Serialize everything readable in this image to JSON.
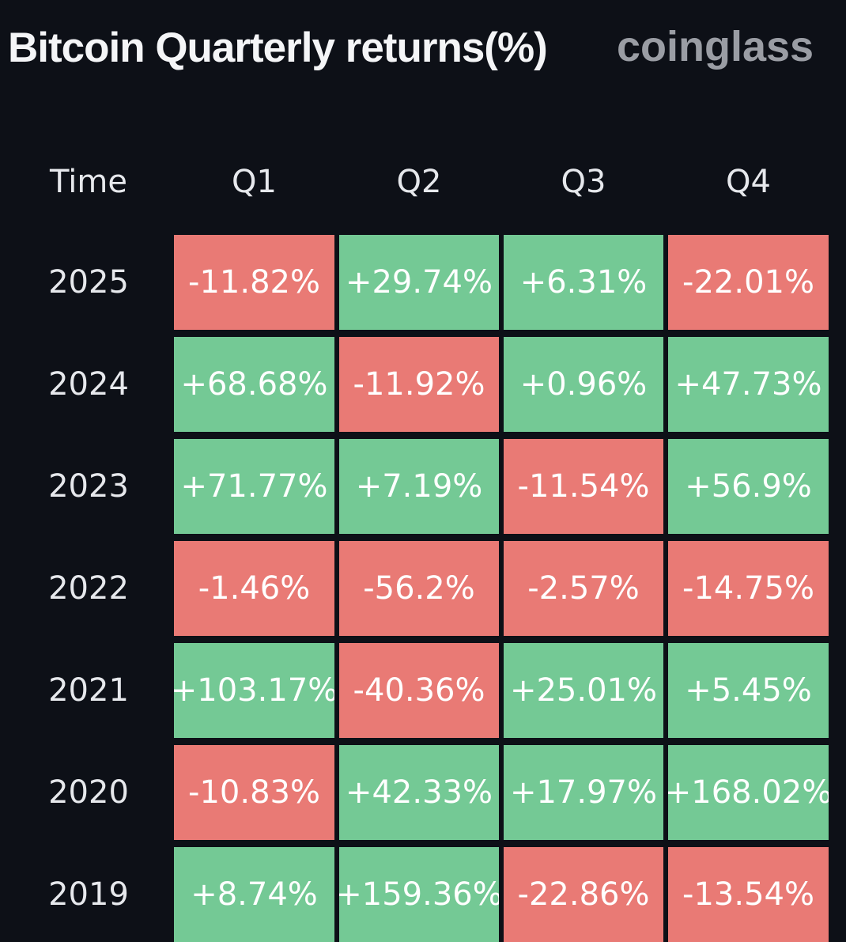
{
  "header": {
    "title": "Bitcoin Quarterly returns(%)",
    "brand": "coinglass"
  },
  "table": {
    "columns": [
      "Time",
      "Q1",
      "Q2",
      "Q3",
      "Q4"
    ],
    "rows": [
      [
        "2025",
        "-11.82%",
        "+29.74%",
        "+6.31%",
        "-22.01%"
      ],
      [
        "2024",
        "+68.68%",
        "-11.92%",
        "+0.96%",
        "+47.73%"
      ],
      [
        "2023",
        "+71.77%",
        "+7.19%",
        "-11.54%",
        "+56.9%"
      ],
      [
        "2022",
        "-1.46%",
        "-56.2%",
        "-2.57%",
        "-14.75%"
      ],
      [
        "2021",
        "+103.17%",
        "-40.36%",
        "+25.01%",
        "+5.45%"
      ],
      [
        "2020",
        "-10.83%",
        "+42.33%",
        "+17.97%",
        "+168.02%"
      ],
      [
        "2019",
        "+8.74%",
        "+159.36%",
        "-22.86%",
        "-13.54%"
      ]
    ]
  },
  "colors": {
    "positive": "#74c995",
    "negative": "#e97a75"
  }
}
